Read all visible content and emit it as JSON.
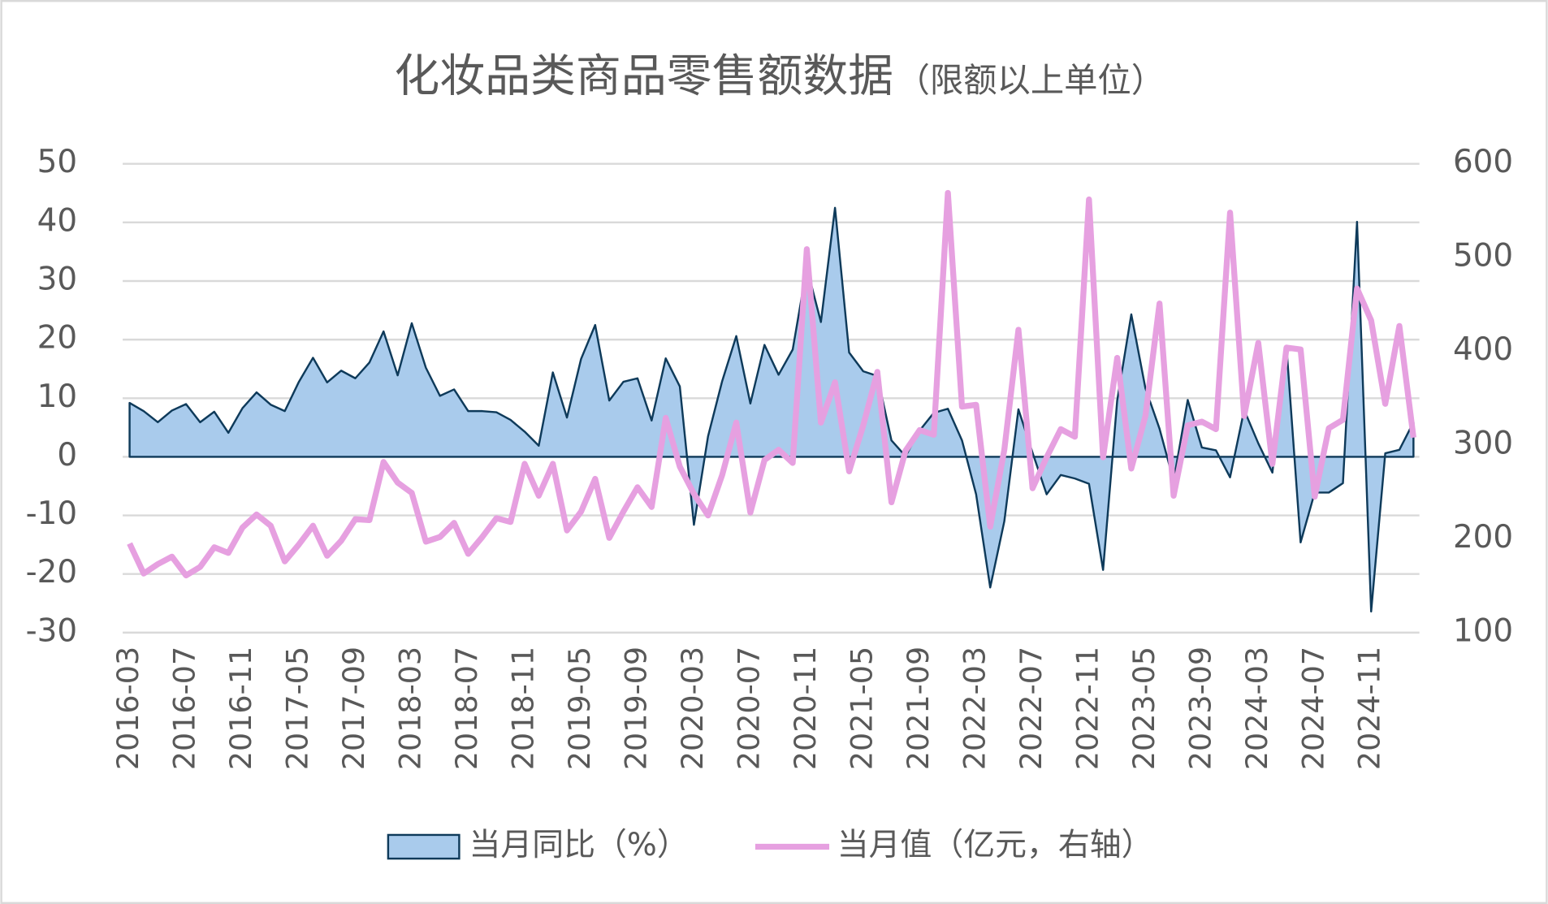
{
  "chart_data": {
    "type": "area-line",
    "title": "化妆品类商品零售额数据",
    "subtitle": "（限额以上单位）",
    "categories": [
      "2016-03",
      null,
      null,
      null,
      "2016-07",
      null,
      null,
      null,
      "2016-11",
      null,
      null,
      null,
      "2017-05",
      null,
      null,
      null,
      "2017-09",
      null,
      null,
      null,
      "2018-03",
      null,
      null,
      null,
      "2018-07",
      null,
      null,
      null,
      "2018-11",
      null,
      null,
      null,
      "2019-05",
      null,
      null,
      null,
      "2019-09",
      null,
      null,
      null,
      "2020-03",
      null,
      null,
      null,
      "2020-07",
      null,
      null,
      null,
      "2020-11",
      null,
      null,
      null,
      "2021-05",
      null,
      null,
      null,
      "2021-09",
      null,
      null,
      null,
      "2022-03",
      null,
      null,
      null,
      "2022-07",
      null,
      null,
      null,
      "2022-11",
      null,
      null,
      null,
      "2023-05",
      null,
      null,
      null,
      "2023-09",
      null,
      null,
      null,
      "2024-03",
      null,
      null,
      null,
      "2024-07",
      null,
      null,
      null,
      "2024-11",
      null,
      null,
      null
    ],
    "series": [
      {
        "name": "当月同比（%）",
        "color": "#a9cbec",
        "stroke": "#0e3a5a",
        "axis": "y",
        "values": [
          9.2,
          7.8,
          5.9,
          7.9,
          9.0,
          5.9,
          7.7,
          4.1,
          8.3,
          11.0,
          8.9,
          7.8,
          12.8,
          16.9,
          12.7,
          14.7,
          13.4,
          16.1,
          21.4,
          13.9,
          22.8,
          15.2,
          10.4,
          11.5,
          7.8,
          7.8,
          7.6,
          6.3,
          4.3,
          1.9,
          14.4,
          6.7,
          16.7,
          22.5,
          9.6,
          12.8,
          13.4,
          6.2,
          16.8,
          12.0,
          -11.6,
          3.5,
          12.9,
          20.6,
          9.1,
          19.1,
          14.0,
          18.3,
          32.3,
          23.0,
          42.5,
          17.8,
          14.6,
          13.8,
          2.8,
          0.1,
          4.5,
          7.5,
          8.2,
          2.8,
          -6.4,
          -22.3,
          -11.0,
          8.1,
          0.7,
          -6.4,
          -3.1,
          -3.7,
          -4.6,
          -19.3,
          9.6,
          24.3,
          11.7,
          4.8,
          -4.1,
          9.7,
          1.6,
          1.1,
          -3.5,
          8.0,
          2.3,
          -2.7,
          18.7,
          -14.6,
          -6.1,
          -6.1,
          -4.5,
          40.1,
          -26.4,
          0.6,
          1.2,
          5.9
        ]
      },
      {
        "name": "当月值（亿元，右轴）",
        "color": "#e6a0e0",
        "axis": "y2",
        "values": [
          195,
          163,
          173,
          181,
          161,
          170,
          191,
          185,
          212,
          226,
          214,
          176,
          194,
          214,
          182,
          198,
          221,
          220,
          282,
          260,
          249,
          197,
          202,
          217,
          184,
          202,
          222,
          218,
          280,
          246,
          280,
          209,
          229,
          264,
          201,
          229,
          255,
          234,
          329,
          277,
          248,
          225,
          268,
          324,
          228,
          284,
          295,
          281,
          509,
          324,
          367,
          272,
          321,
          378,
          239,
          294,
          316,
          311,
          569,
          341,
          343,
          213,
          295,
          423,
          254,
          287,
          317,
          309,
          562,
          287,
          393,
          275,
          331,
          451,
          246,
          321,
          325,
          317,
          548,
          331,
          409,
          280,
          404,
          402,
          245,
          318,
          327,
          467,
          433,
          344,
          427,
          308
        ]
      }
    ],
    "ylim": [
      -30,
      50
    ],
    "yticks": [
      -30,
      -20,
      -10,
      0,
      10,
      20,
      30,
      40,
      50
    ],
    "y2lim": [
      100,
      600
    ],
    "y2ticks": [
      100,
      200,
      300,
      400,
      500,
      600
    ],
    "grid": true,
    "legend": "bottom"
  }
}
